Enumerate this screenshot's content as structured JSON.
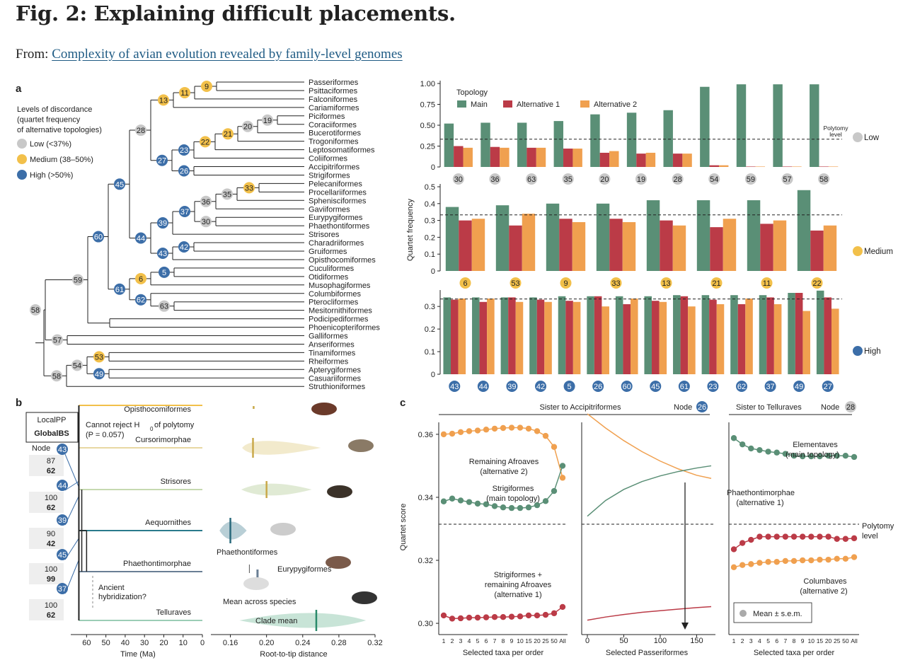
{
  "title": "Fig. 2: Explaining difficult placements.",
  "from_prefix": "From:",
  "from_link": "Complexity of avian evolution revealed by family-level genomes",
  "colors": {
    "main": "#5a8f76",
    "alt1": "#bb3b47",
    "alt2": "#f0a04f",
    "low": "#c8c8c8",
    "medium": "#f2c04a",
    "high": "#3c6ea8"
  },
  "panel_a": {
    "label": "a",
    "legend": {
      "title_lines": [
        "Levels of discordance",
        "(quartet frequency",
        "of alternative topologies)"
      ],
      "items": [
        "Low (<37%)",
        "Medium (38–50%)",
        "High (>50%)"
      ]
    },
    "taxa": [
      "Passeriformes",
      "Psittaciformes",
      "Falconiformes",
      "Cariamiformes",
      "Piciformes",
      "Coraciiformes",
      "Bucerotiformes",
      "Trogoniformes",
      "Leptosomatiformes",
      "Coliiformes",
      "Accipitriformes",
      "Strigiformes",
      "Pelecaniformes",
      "Procellariiformes",
      "Sphenisciformes",
      "Gaviiformes",
      "Eurypygiformes",
      "Phaethontiformes",
      "Strisores",
      "Charadriiformes",
      "Gruiformes",
      "Opisthocomiformes",
      "Cuculiformes",
      "Otidiformes",
      "Musophagiformes",
      "Columbiformes",
      "Pterocliformes",
      "Mesitornithiformes",
      "Podicipediformes",
      "Phoenicopteriformes",
      "Galliformes",
      "Anseriformes",
      "Tinamiformes",
      "Rheiformes",
      "Apterygiformes",
      "Casuariiformes",
      "Struthioniformes"
    ],
    "nodes": [
      {
        "id": "9",
        "level": "medium"
      },
      {
        "id": "11",
        "level": "medium"
      },
      {
        "id": "13",
        "level": "medium"
      },
      {
        "id": "28",
        "level": "low"
      },
      {
        "id": "19",
        "level": "low"
      },
      {
        "id": "20",
        "level": "low"
      },
      {
        "id": "21",
        "level": "medium"
      },
      {
        "id": "22",
        "level": "medium"
      },
      {
        "id": "23",
        "level": "high"
      },
      {
        "id": "26",
        "level": "high"
      },
      {
        "id": "27",
        "level": "high"
      },
      {
        "id": "45",
        "level": "high"
      },
      {
        "id": "35",
        "level": "low"
      },
      {
        "id": "33",
        "level": "medium"
      },
      {
        "id": "36",
        "level": "low"
      },
      {
        "id": "37",
        "level": "high"
      },
      {
        "id": "30",
        "level": "low"
      },
      {
        "id": "39",
        "level": "high"
      },
      {
        "id": "42",
        "level": "high"
      },
      {
        "id": "43",
        "level": "high"
      },
      {
        "id": "44",
        "level": "high"
      },
      {
        "id": "60",
        "level": "high"
      },
      {
        "id": "5",
        "level": "high"
      },
      {
        "id": "6",
        "level": "medium"
      },
      {
        "id": "63",
        "level": "low"
      },
      {
        "id": "62",
        "level": "high"
      },
      {
        "id": "61",
        "level": "high"
      },
      {
        "id": "59",
        "level": "low"
      },
      {
        "id": "58",
        "level": "low"
      },
      {
        "id": "57",
        "level": "low"
      },
      {
        "id": "53",
        "level": "medium"
      },
      {
        "id": "49",
        "level": "high"
      },
      {
        "id": "54",
        "level": "low"
      },
      {
        "id": "58b",
        "text": "58",
        "level": "low"
      }
    ]
  },
  "chart_data": [
    {
      "type": "bar",
      "panel": "a-low",
      "level_label": "Low",
      "series_names": [
        "Main",
        "Alternative 1",
        "Alternative 2"
      ],
      "legend_title": "Topology",
      "categories": [
        "30",
        "36",
        "63",
        "35",
        "20",
        "19",
        "28",
        "54",
        "59",
        "57",
        "58"
      ],
      "series": [
        {
          "name": "Main",
          "values": [
            0.52,
            0.53,
            0.53,
            0.55,
            0.63,
            0.65,
            0.68,
            0.96,
            0.99,
            0.99,
            0.99
          ]
        },
        {
          "name": "Alternative 1",
          "values": [
            0.25,
            0.24,
            0.23,
            0.22,
            0.17,
            0.16,
            0.16,
            0.02,
            0.005,
            0.005,
            0.005
          ]
        },
        {
          "name": "Alternative 2",
          "values": [
            0.23,
            0.23,
            0.23,
            0.22,
            0.19,
            0.17,
            0.16,
            0.02,
            0.005,
            0.005,
            0.005
          ]
        }
      ],
      "ylim": [
        0,
        1.0
      ],
      "yticks": [
        "0",
        "0.25",
        "0.50",
        "0.75",
        "1.00"
      ],
      "polytomy": 0.333,
      "polytomy_label": [
        "Polytomy",
        "level"
      ]
    },
    {
      "type": "bar",
      "panel": "a-medium",
      "level_label": "Medium",
      "ylabel": "Quartet frequency",
      "categories": [
        "6",
        "53",
        "9",
        "33",
        "13",
        "21",
        "11",
        "22"
      ],
      "series": [
        {
          "name": "Main",
          "values": [
            0.38,
            0.39,
            0.4,
            0.4,
            0.42,
            0.42,
            0.42,
            0.48
          ]
        },
        {
          "name": "Alternative 1",
          "values": [
            0.3,
            0.27,
            0.31,
            0.31,
            0.3,
            0.26,
            0.28,
            0.24
          ]
        },
        {
          "name": "Alternative 2",
          "values": [
            0.31,
            0.34,
            0.29,
            0.29,
            0.27,
            0.31,
            0.3,
            0.27
          ]
        }
      ],
      "ylim": [
        0,
        0.5
      ],
      "yticks": [
        "0",
        "0.1",
        "0.2",
        "0.3",
        "0.4",
        "0.5"
      ],
      "polytomy": 0.333
    },
    {
      "type": "bar",
      "panel": "a-high",
      "level_label": "High",
      "categories": [
        "43",
        "44",
        "39",
        "42",
        "5",
        "26",
        "60",
        "45",
        "61",
        "23",
        "62",
        "37",
        "49",
        "27"
      ],
      "series": [
        {
          "name": "Main",
          "values": [
            0.34,
            0.34,
            0.34,
            0.34,
            0.345,
            0.345,
            0.345,
            0.345,
            0.35,
            0.35,
            0.35,
            0.35,
            0.36,
            0.37
          ]
        },
        {
          "name": "Alternative 1",
          "values": [
            0.33,
            0.32,
            0.34,
            0.33,
            0.325,
            0.345,
            0.31,
            0.325,
            0.345,
            0.33,
            0.31,
            0.34,
            0.36,
            0.34
          ]
        },
        {
          "name": "Alternative 2",
          "values": [
            0.335,
            0.335,
            0.32,
            0.32,
            0.32,
            0.3,
            0.335,
            0.32,
            0.3,
            0.31,
            0.335,
            0.31,
            0.28,
            0.29
          ]
        }
      ],
      "ylim": [
        0,
        0.36
      ],
      "yticks": [
        "0",
        "0.1",
        "0.2",
        "0.3"
      ],
      "polytomy": 0.333
    },
    {
      "type": "line",
      "panel": "c-left",
      "title": "Sister to Accipitriformes",
      "node": "26",
      "x": [
        "1",
        "2",
        "3",
        "4",
        "5",
        "6",
        "7",
        "8",
        "9",
        "10",
        "15",
        "20",
        "25",
        "50",
        "All"
      ],
      "xlabel": "Selected taxa per order",
      "ylabel": "Quartet score",
      "ylim": [
        0.298,
        0.362
      ],
      "yticks": [
        "0.30",
        "0.32",
        "0.34",
        "0.36"
      ],
      "series": [
        {
          "name": "Remaining Afroaves (alternative 2)",
          "values": [
            0.36,
            0.3602,
            0.3607,
            0.361,
            0.3612,
            0.3615,
            0.3618,
            0.362,
            0.3621,
            0.3621,
            0.3618,
            0.361,
            0.3595,
            0.356,
            0.3462
          ]
        },
        {
          "name": "Strigiformes (main topology)",
          "values": [
            0.3387,
            0.3396,
            0.339,
            0.3385,
            0.338,
            0.3378,
            0.3372,
            0.3368,
            0.3366,
            0.3366,
            0.3368,
            0.3375,
            0.3388,
            0.342,
            0.35
          ]
        },
        {
          "name": "Strigiformes + remaining Afroaves (alternative 1)",
          "values": [
            0.3025,
            0.3015,
            0.3016,
            0.3018,
            0.3018,
            0.3019,
            0.302,
            0.302,
            0.3021,
            0.3022,
            0.3025,
            0.3025,
            0.3027,
            0.3032,
            0.3052
          ]
        }
      ],
      "annotations": [
        "Remaining Afroaves",
        "(alternative 2)",
        "Strigiformes",
        "(main topology)",
        "Strigiformes +",
        "remaining Afroaves",
        "(alternative 1)"
      ],
      "polytomy": 0.3333
    },
    {
      "type": "line",
      "panel": "c-middle",
      "xlabel": "Selected Passeriformes",
      "xticks": [
        "0",
        "50",
        "100",
        "150"
      ],
      "series": [
        {
          "name": "Alternative 2",
          "x": [
            0,
            25,
            50,
            75,
            100,
            125,
            150,
            170
          ],
          "values": [
            0.3665,
            0.362,
            0.358,
            0.3545,
            0.3515,
            0.349,
            0.347,
            0.346
          ]
        },
        {
          "name": "Main",
          "x": [
            0,
            25,
            50,
            75,
            100,
            125,
            150,
            170
          ],
          "values": [
            0.334,
            0.339,
            0.3425,
            0.345,
            0.3468,
            0.3482,
            0.3493,
            0.35
          ]
        },
        {
          "name": "Alternative 1",
          "x": [
            0,
            25,
            50,
            75,
            100,
            125,
            150,
            170
          ],
          "values": [
            0.301,
            0.302,
            0.3028,
            0.3035,
            0.304,
            0.3045,
            0.305,
            0.3053
          ]
        }
      ]
    },
    {
      "type": "line",
      "panel": "c-right",
      "title": "Sister to Telluraves",
      "node": "28",
      "x": [
        "1",
        "2",
        "3",
        "4",
        "5",
        "6",
        "7",
        "8",
        "9",
        "10",
        "15",
        "20",
        "25",
        "50",
        "All"
      ],
      "xlabel": "Selected taxa per order",
      "polytomy_label": [
        "Polytomy",
        "level"
      ],
      "series": [
        {
          "name": "Elementaves (main topology)",
          "values": [
            0.3588,
            0.3568,
            0.3555,
            0.355,
            0.3545,
            0.3542,
            0.3538,
            0.3532,
            0.353,
            0.353,
            0.353,
            0.3532,
            0.3532,
            0.3532,
            0.3528
          ]
        },
        {
          "name": "Phaethontimorphae (alternative 1)",
          "values": [
            0.3235,
            0.3255,
            0.3265,
            0.3275,
            0.3275,
            0.3275,
            0.3275,
            0.3275,
            0.3275,
            0.3275,
            0.3275,
            0.3275,
            0.3268,
            0.3268,
            0.327
          ]
        },
        {
          "name": "Columbaves (alternative 2)",
          "values": [
            0.3178,
            0.3185,
            0.3188,
            0.3192,
            0.3195,
            0.3195,
            0.3198,
            0.3198,
            0.32,
            0.32,
            0.3202,
            0.3202,
            0.3205,
            0.3205,
            0.321
          ]
        }
      ],
      "annotations": [
        "Elementaves",
        "(main topology)",
        "Phaethontimorphae",
        "(alternative 1)",
        "Columbaves",
        "(alternative 2)"
      ],
      "legend": "Mean ± s.e.m."
    }
  ],
  "panel_b": {
    "label": "b",
    "legend_box": [
      "LocalPP",
      "GlobalBS"
    ],
    "node_label": "Node",
    "clades": [
      "Opisthocomiformes",
      "Cursorimorphae",
      "Strisores",
      "Aequornithes",
      "Phaethontimorphae",
      "Telluraves"
    ],
    "nodes": [
      {
        "id": "43",
        "pp": "87",
        "bs": "62"
      },
      {
        "id": "44",
        "pp": "100",
        "bs": "62"
      },
      {
        "id": "39",
        "pp": "90",
        "bs": "42"
      },
      {
        "id": "45",
        "pp": "100",
        "bs": "99"
      },
      {
        "id": "37",
        "pp": "100",
        "bs": "62"
      }
    ],
    "annot1": "Cannot reject H",
    "annot1_sub": "0",
    "annot1_rest": " of polytomy",
    "annot2": "(P = 0.057)",
    "annot3": [
      "Ancient",
      "hybridization?"
    ],
    "time_ticks": [
      "60",
      "50",
      "40",
      "30",
      "20",
      "10",
      "0"
    ],
    "time_label": "Time (Ma)",
    "rtt_ticks": [
      "0.16",
      "0.20",
      "0.24",
      "0.28",
      "0.32"
    ],
    "rtt_label": "Root-to-tip distance",
    "violin_labels": [
      "Phaethontiformes",
      "Eurypygiformes",
      "Mean across species",
      "Clade mean"
    ]
  },
  "panel_c": {
    "label": "c",
    "node_word": "Node"
  }
}
